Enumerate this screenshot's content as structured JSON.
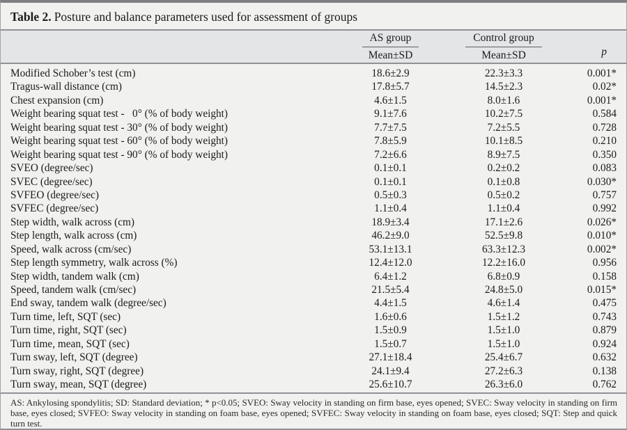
{
  "title": {
    "label": "Table 2.",
    "caption": "Posture and balance parameters used for assessment of groups"
  },
  "table": {
    "group_headers": [
      {
        "label": "AS group"
      },
      {
        "label": "Control group"
      }
    ],
    "sub_headers": [
      "Mean±SD",
      "Mean±SD"
    ],
    "p_header": "p",
    "rows": [
      {
        "parameter": "Modified Schober’s test (cm)",
        "as_group": "18.6±2.9",
        "control_group": "22.3±3.3",
        "p": "0.001*"
      },
      {
        "parameter": "Tragus-wall distance (cm)",
        "as_group": "17.8±5.7",
        "control_group": "14.5±2.3",
        "p": "0.02*"
      },
      {
        "parameter": "Chest expansion (cm)",
        "as_group": "4.6±1.5",
        "control_group": "8.0±1.6",
        "p": "0.001*"
      },
      {
        "parameter": "Weight bearing squat test -   0° (% of body weight)",
        "as_group": "9.1±7.6",
        "control_group": "10.2±7.5",
        "p": "0.584"
      },
      {
        "parameter": "Weight bearing squat test - 30° (% of body weight)",
        "as_group": "7.7±7.5",
        "control_group": "7.2±5.5",
        "p": "0.728"
      },
      {
        "parameter": "Weight bearing squat test - 60° (% of body weight)",
        "as_group": "7.8±5.9",
        "control_group": "10.1±8.5",
        "p": "0.210"
      },
      {
        "parameter": "Weight bearing squat test - 90° (% of body weight)",
        "as_group": "7.2±6.6",
        "control_group": "8.9±7.5",
        "p": "0.350"
      },
      {
        "parameter": "SVEO (degree/sec)",
        "as_group": "0.1±0.1",
        "control_group": "0.2±0.2",
        "p": "0.083"
      },
      {
        "parameter": "SVEC (degree/sec)",
        "as_group": "0.1±0.1",
        "control_group": "0.1±0.8",
        "p": "0.030*"
      },
      {
        "parameter": "SVFEO (degree/sec)",
        "as_group": "0.5±0.3",
        "control_group": "0.5±0.2",
        "p": "0.757"
      },
      {
        "parameter": "SVFEC (degree/sec)",
        "as_group": "1.1±0.4",
        "control_group": "1.1±0.4",
        "p": "0.992"
      },
      {
        "parameter": "Step width, walk across (cm)",
        "as_group": "18.9±3.4",
        "control_group": "17.1±2.6",
        "p": "0.026*"
      },
      {
        "parameter": "Step length, walk across (cm)",
        "as_group": "46.2±9.0",
        "control_group": "52.5±9.8",
        "p": "0.010*"
      },
      {
        "parameter": "Speed, walk across (cm/sec)",
        "as_group": "53.1±13.1",
        "control_group": "63.3±12.3",
        "p": "0.002*"
      },
      {
        "parameter": "Step length symmetry, walk across (%)",
        "as_group": "12.4±12.0",
        "control_group": "12.2±16.0",
        "p": "0.956"
      },
      {
        "parameter": "Step width, tandem walk (cm)",
        "as_group": "6.4±1.2",
        "control_group": "6.8±0.9",
        "p": "0.158"
      },
      {
        "parameter": "Speed, tandem walk (cm/sec)",
        "as_group": "21.5±5.4",
        "control_group": "24.8±5.0",
        "p": "0.015*"
      },
      {
        "parameter": "End sway, tandem walk (degree/sec)",
        "as_group": "4.4±1.5",
        "control_group": "4.6±1.4",
        "p": "0.475"
      },
      {
        "parameter": "Turn time, left, SQT (sec)",
        "as_group": "1.6±0.6",
        "control_group": "1.5±1.2",
        "p": "0.743"
      },
      {
        "parameter": "Turn time, right, SQT (sec)",
        "as_group": "1.5±0.9",
        "control_group": "1.5±1.0",
        "p": "0.879"
      },
      {
        "parameter": "Turn time, mean, SQT (sec)",
        "as_group": "1.5±0.7",
        "control_group": "1.5±1.0",
        "p": "0.924"
      },
      {
        "parameter": "Turn sway, left, SQT (degree)",
        "as_group": "27.1±18.4",
        "control_group": "25.4±6.7",
        "p": "0.632"
      },
      {
        "parameter": "Turn sway, right, SQT (degree)",
        "as_group": "24.1±9.4",
        "control_group": "27.2±6.3",
        "p": "0.138"
      },
      {
        "parameter": "Turn sway, mean, SQT (degree)",
        "as_group": "25.6±10.7",
        "control_group": "26.3±6.0",
        "p": "0.762"
      }
    ]
  },
  "footnote": "AS: Ankylosing spondylitis; SD: Standard deviation; * p<0.05; SVEO: Sway velocity in standing on firm base, eyes opened; SVEC: Sway velocity in standing on firm base, eyes closed; SVFEO: Sway velocity in standing on foam base, eyes opened; SVFEC: Sway velocity in standing on foam base, eyes closed; SQT: Step and quick turn test."
}
